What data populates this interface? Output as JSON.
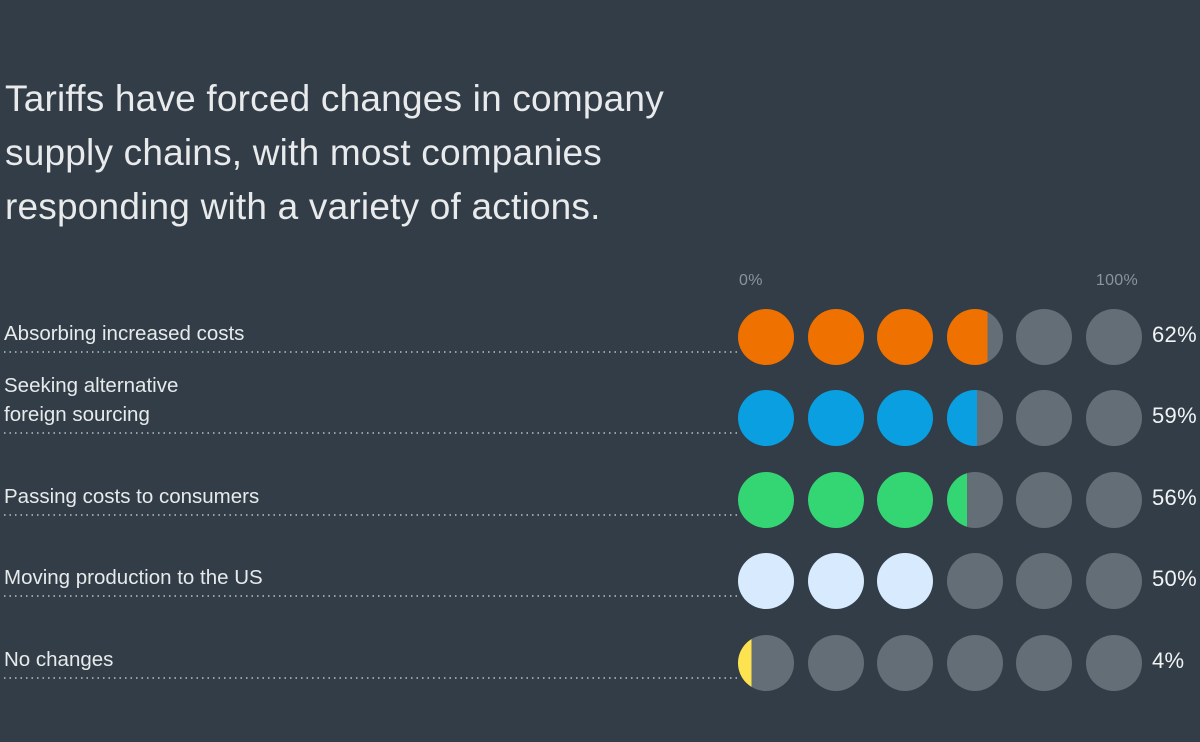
{
  "title": "Tariffs have forced changes in company\nsupply chains, with most companies\nresponding with a variety of actions.",
  "chart_data": {
    "type": "bar",
    "subtype": "pictogram-dots",
    "title": "Tariffs have forced changes in company supply chains, with most companies responding with a variety of actions.",
    "dots_per_row": 6,
    "axis": {
      "min_label": "0%",
      "max_label": "100%",
      "range": [
        0,
        100
      ]
    },
    "rows": [
      {
        "label": "Absorbing increased costs",
        "value": 62,
        "value_label": "62%",
        "color": "#EF7100"
      },
      {
        "label": "Seeking alternative\nforeign sourcing",
        "value": 59,
        "value_label": "59%",
        "color": "#099FE0"
      },
      {
        "label": "Passing costs to consumers",
        "value": 56,
        "value_label": "56%",
        "color": "#34D674"
      },
      {
        "label": "Moving production to the US",
        "value": 50,
        "value_label": "50%",
        "color": "#D7EAFE"
      },
      {
        "label": "No changes",
        "value": 4,
        "value_label": "4%",
        "color": "#FCE34F"
      }
    ],
    "colors": {
      "empty_dot": "#646E77",
      "background": "#323D47",
      "text": "#E8EAEB",
      "axis_text": "#8A949B",
      "leader_line": "#97A1A8"
    },
    "legend": null,
    "grid": false
  }
}
